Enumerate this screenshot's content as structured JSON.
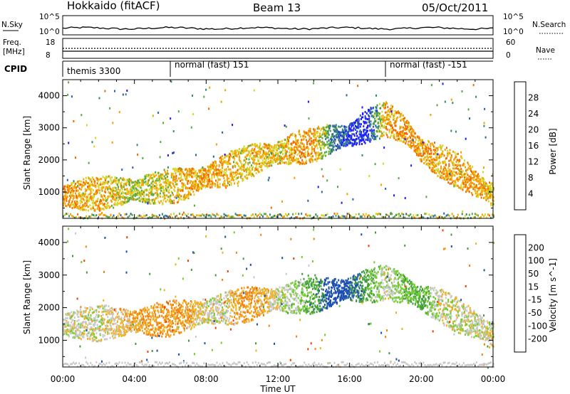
{
  "header": {
    "station": "Hokkaido (fitACF)",
    "beam": "Beam 13",
    "date": "05/Oct/2011"
  },
  "strips": {
    "nsky_label": "N.Sky",
    "nsearch_label": "N.Search",
    "noise_ticks": [
      "10^5",
      "10^0"
    ],
    "freq_label_1": "Freq.",
    "freq_label_2": "[MHz]",
    "freq_ticks": [
      "18",
      "8"
    ],
    "nave_label": "Nave",
    "nave_ticks": [
      "60",
      "0"
    ],
    "cpid_label": "CPID",
    "cpid_segments": [
      {
        "label": "themis 3300",
        "start_hour": 0
      },
      {
        "label": "normal (fast) 151",
        "start_hour": 6
      },
      {
        "label": "normal (fast) -151",
        "start_hour": 18
      }
    ]
  },
  "colors": {
    "power_scale": [
      "#1a1aff",
      "#2c5fae",
      "#2f8a6e",
      "#5aa83c",
      "#d6d626",
      "#f6a000",
      "#f06a00",
      "#e81800"
    ],
    "velocity_scale": [
      "#e60000",
      "#f04000",
      "#f08010",
      "#f0b020",
      "#c8c8c8",
      "#72cc2e",
      "#3f9c3c",
      "#1a4fb0",
      "#2020d0"
    ]
  },
  "chart_data": [
    {
      "type": "heatmap",
      "name": "power-panel",
      "xlabel": "Time UT",
      "ylabel": "Slant Range [km]",
      "xlim": [
        0,
        24
      ],
      "ylim": [
        180,
        4500
      ],
      "x_ticks": [
        "00:00",
        "04:00",
        "08:00",
        "12:00",
        "16:00",
        "20:00",
        "00:00"
      ],
      "y_ticks": [
        1000,
        2000,
        3000,
        4000
      ],
      "colorbar": {
        "label": "Power [dB]",
        "ticks": [
          "4",
          "8",
          "12",
          "16",
          "20",
          "24",
          "28"
        ],
        "range": [
          0,
          32
        ]
      },
      "main_echo_track": {
        "hours": [
          0,
          2,
          4,
          6,
          7,
          8,
          9,
          10,
          11,
          12,
          13,
          14,
          15,
          16,
          17,
          18,
          19,
          20,
          21,
          22,
          23,
          24
        ],
        "range_km": [
          900,
          1000,
          1100,
          1200,
          1300,
          1500,
          1700,
          1900,
          2100,
          2250,
          2400,
          2500,
          2700,
          2800,
          3100,
          3300,
          3000,
          2300,
          2000,
          1700,
          1300,
          900
        ],
        "power_db": [
          28,
          26,
          22,
          24,
          28,
          28,
          26,
          24,
          26,
          24,
          28,
          28,
          14,
          8,
          6,
          28,
          28,
          28,
          26,
          28,
          28,
          24
        ]
      }
    },
    {
      "type": "heatmap",
      "name": "velocity-panel",
      "xlabel": "Time UT",
      "ylabel": "Slant Range [km]",
      "xlim": [
        0,
        24
      ],
      "ylim": [
        180,
        4500
      ],
      "x_ticks": [
        "00:00",
        "04:00",
        "08:00",
        "12:00",
        "16:00",
        "20:00",
        "00:00"
      ],
      "y_ticks": [
        1000,
        2000,
        3000,
        4000
      ],
      "colorbar": {
        "label": "Velocity [m s^-1]",
        "ticks": [
          "200",
          "100",
          "50",
          "15",
          "-15",
          "-50",
          "-100",
          "-200"
        ],
        "range": [
          -250,
          250
        ]
      },
      "main_echo_track": {
        "hours": [
          0,
          2,
          4,
          6,
          7,
          8,
          9,
          10,
          11,
          12,
          13,
          14,
          15,
          16,
          17,
          18,
          19,
          20,
          21,
          22,
          23,
          24
        ],
        "range_km": [
          1500,
          1550,
          1600,
          1700,
          1800,
          1900,
          2000,
          2100,
          2200,
          2300,
          2350,
          2400,
          2500,
          2600,
          2700,
          2800,
          2600,
          2300,
          2100,
          1800,
          1500,
          1200
        ],
        "velocity_ms": [
          0,
          0,
          -40,
          -60,
          -40,
          0,
          0,
          -60,
          -40,
          0,
          20,
          60,
          150,
          120,
          60,
          0,
          40,
          60,
          0,
          0,
          0,
          0
        ]
      }
    }
  ]
}
